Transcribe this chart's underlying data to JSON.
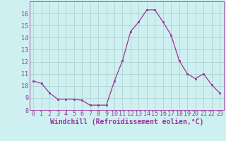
{
  "x": [
    0,
    1,
    2,
    3,
    4,
    5,
    6,
    7,
    8,
    9,
    10,
    11,
    12,
    13,
    14,
    15,
    16,
    17,
    18,
    19,
    20,
    21,
    22,
    23
  ],
  "y": [
    10.4,
    10.2,
    9.4,
    8.9,
    8.9,
    8.9,
    8.8,
    8.4,
    8.4,
    8.4,
    10.4,
    12.1,
    14.5,
    15.3,
    16.3,
    16.3,
    15.3,
    14.2,
    12.1,
    11.0,
    10.6,
    11.0,
    10.1,
    9.4
  ],
  "line_color": "#993399",
  "marker": "s",
  "marker_size": 2,
  "bg_color": "#cff0f0",
  "grid_color": "#aacccc",
  "xlabel": "Windchill (Refroidissement éolien,°C)",
  "ylim": [
    8,
    17
  ],
  "xlim": [
    -0.5,
    23.5
  ],
  "yticks": [
    8,
    9,
    10,
    11,
    12,
    13,
    14,
    15,
    16
  ],
  "xticks": [
    0,
    1,
    2,
    3,
    4,
    5,
    6,
    7,
    8,
    9,
    10,
    11,
    12,
    13,
    14,
    15,
    16,
    17,
    18,
    19,
    20,
    21,
    22,
    23
  ],
  "tick_fontsize": 6,
  "label_fontsize": 7
}
